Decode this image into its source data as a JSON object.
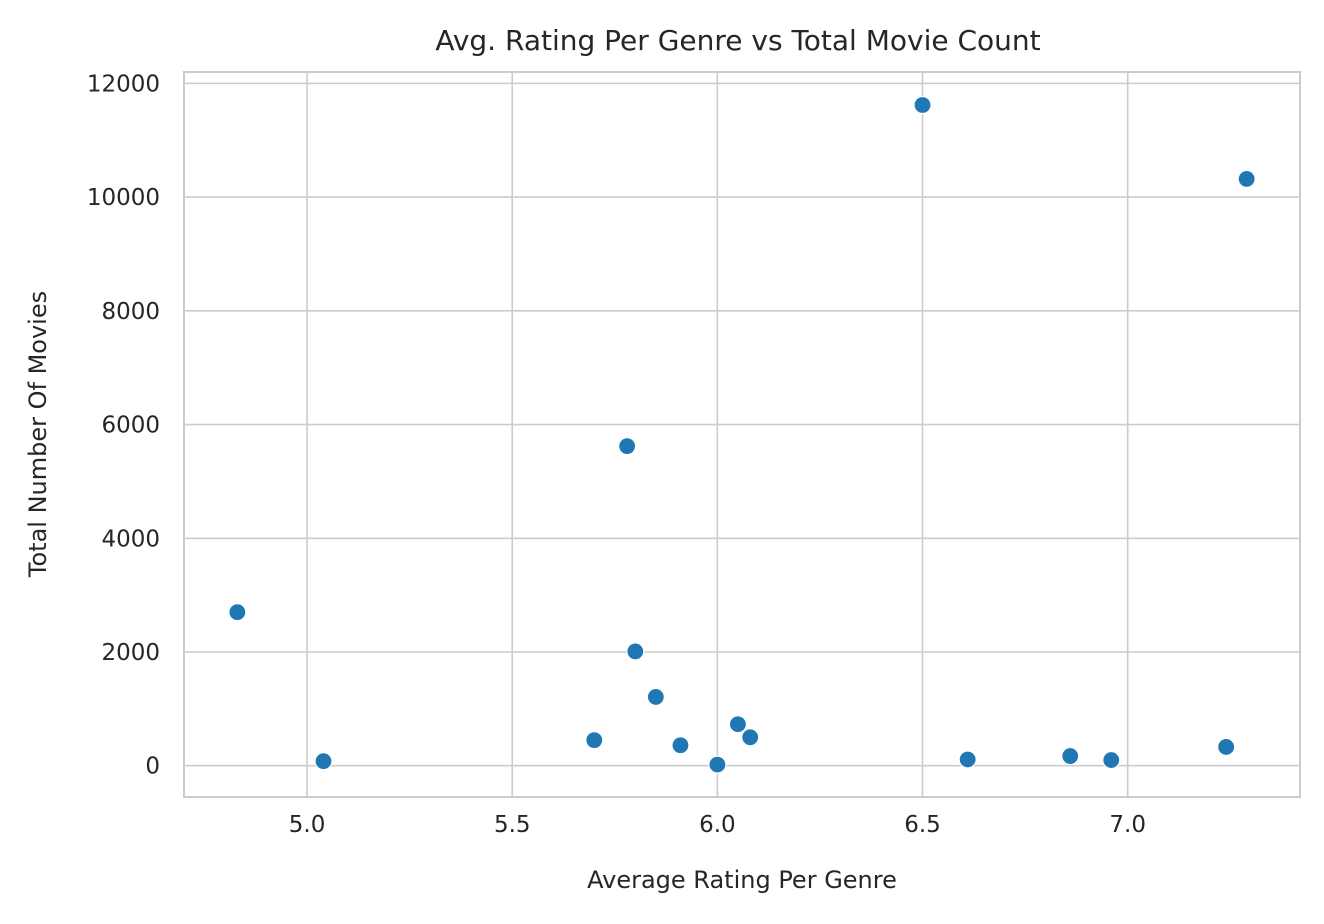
{
  "chart_data": {
    "type": "scatter",
    "title": "Avg. Rating Per Genre vs Total Movie Count",
    "xlabel": "Average Rating Per Genre",
    "ylabel": "Total Number Of Movies",
    "xlim": [
      4.7,
      7.42
    ],
    "ylim": [
      -550,
      12200
    ],
    "xticks": [
      5.0,
      5.5,
      6.0,
      6.5,
      7.0
    ],
    "xtick_labels": [
      "5.0",
      "5.5",
      "6.0",
      "6.5",
      "7.0"
    ],
    "yticks": [
      0,
      2000,
      4000,
      6000,
      8000,
      10000,
      12000
    ],
    "ytick_labels": [
      "0",
      "2000",
      "4000",
      "6000",
      "8000",
      "10000",
      "12000"
    ],
    "grid": true,
    "color": "#1f77b4",
    "points": [
      {
        "x": 4.83,
        "y": 2700
      },
      {
        "x": 5.04,
        "y": 80
      },
      {
        "x": 5.7,
        "y": 450
      },
      {
        "x": 5.78,
        "y": 5620
      },
      {
        "x": 5.8,
        "y": 2010
      },
      {
        "x": 5.85,
        "y": 1210
      },
      {
        "x": 5.91,
        "y": 360
      },
      {
        "x": 6.0,
        "y": 20
      },
      {
        "x": 6.05,
        "y": 730
      },
      {
        "x": 6.08,
        "y": 500
      },
      {
        "x": 6.5,
        "y": 11620
      },
      {
        "x": 6.61,
        "y": 110
      },
      {
        "x": 6.86,
        "y": 170
      },
      {
        "x": 6.96,
        "y": 100
      },
      {
        "x": 7.24,
        "y": 330
      },
      {
        "x": 7.29,
        "y": 10320
      }
    ]
  }
}
